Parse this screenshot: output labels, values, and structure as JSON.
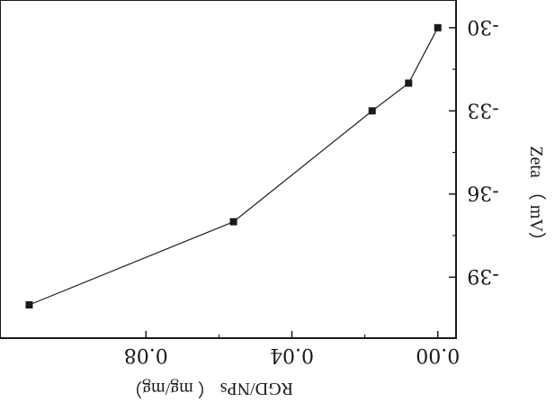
{
  "chart_data": {
    "type": "line",
    "mirrored": true,
    "title": "",
    "xlabel": "RGD/NPs （ mg/mg）",
    "ylabel": "Zeta （ mV）",
    "x": [
      0.0,
      0.008,
      0.018,
      0.056,
      0.112
    ],
    "y": [
      -30.0,
      -32.0,
      -33.0,
      -37.0,
      -40.0
    ],
    "xlim": [
      0.12,
      -0.005
    ],
    "ylim": [
      -29.0,
      -41.2
    ],
    "xticks": [
      0.08,
      0.04,
      0.0
    ],
    "xtick_labels": [
      "0.08",
      "0.04",
      "0.00"
    ],
    "yticks": [
      -30,
      -33,
      -36,
      -39
    ],
    "ytick_labels": [
      "-30",
      "-33",
      "-36",
      "-39"
    ],
    "marker": "square",
    "grid": false,
    "legend": "none",
    "line_color": "#1a1a1a"
  }
}
